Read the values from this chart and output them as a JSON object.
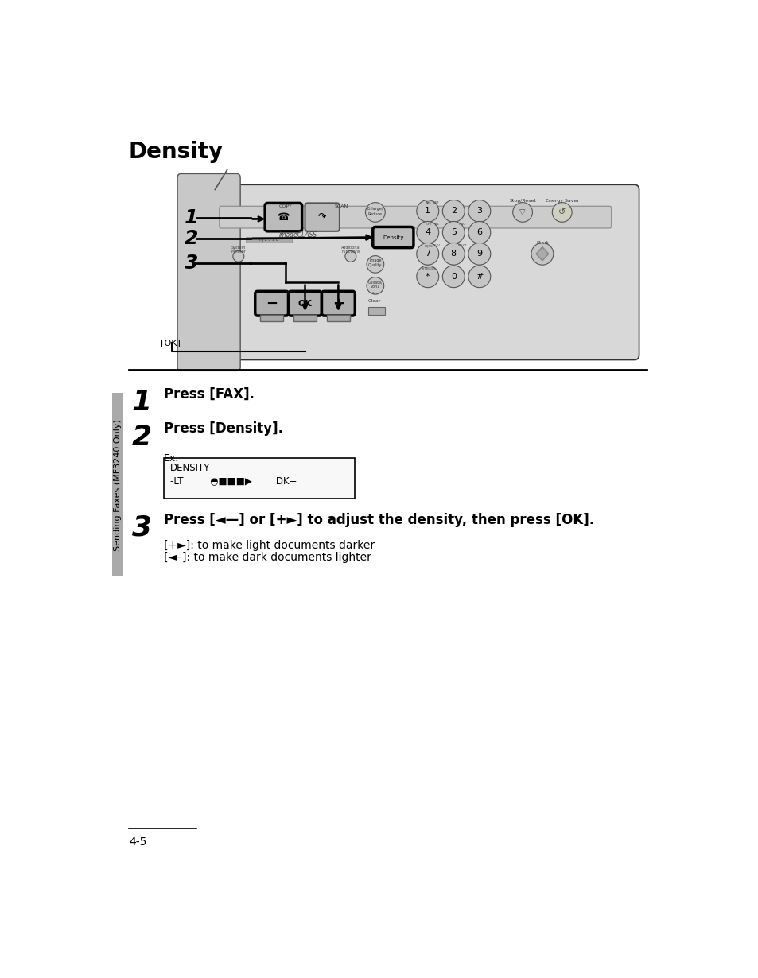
{
  "title": "Density",
  "page_number": "4-5",
  "sidebar_text": "Sending Faxes (MF3240 Only)",
  "step1_num": "1",
  "step1_text": "Press [FAX].",
  "step2_num": "2",
  "step2_text": "Press [Density].",
  "step3_num": "3",
  "step3_text": "Press [◄—] or [+►] to adjust the density, then press [OK].",
  "note1": "Ex.",
  "lcd_line1": "DENSITY",
  "lcd_line2": "-LT         ◓■■■▶        DK+",
  "bullet1": "[+►]: to make light documents darker",
  "bullet2": "[◄–]: to make dark documents lighter",
  "bg_color": "#ffffff",
  "text_color": "#000000",
  "title_fontsize": 20,
  "step_num_fontsize": 26,
  "step_text_fontsize": 12,
  "body_fontsize": 10,
  "sidebar_fontsize": 8,
  "page_num_fontsize": 10,
  "panel_color": "#d8d8d8",
  "panel_edge": "#333333"
}
